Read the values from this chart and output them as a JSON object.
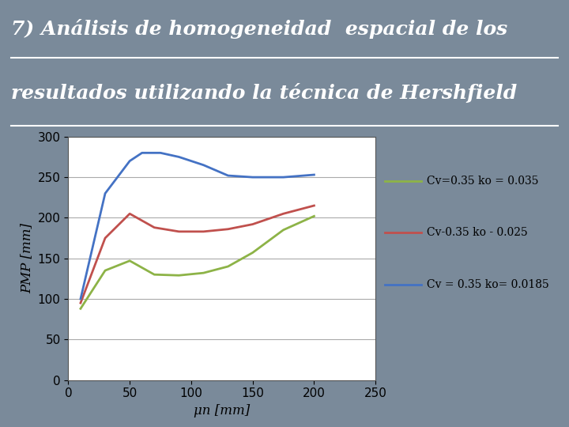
{
  "title_line1": "7) Análisis de homogeneidad  espacial de los",
  "title_line2": "resultados utilizando la técnica de Hershfield",
  "xlabel": "μn [mm]",
  "ylabel": "PMP [mm]",
  "xlim": [
    0,
    250
  ],
  "ylim": [
    0,
    300
  ],
  "xticks": [
    0,
    50,
    100,
    150,
    200,
    250
  ],
  "yticks": [
    0,
    50,
    100,
    150,
    200,
    250,
    300
  ],
  "background_color": "#7a8a9a",
  "chart_bg": "#ffffff",
  "series": [
    {
      "label": "Cv=0.35 ko = 0.035",
      "color": "#8db347",
      "x": [
        10,
        30,
        50,
        70,
        90,
        110,
        130,
        150,
        175,
        200
      ],
      "y": [
        88,
        135,
        147,
        130,
        129,
        132,
        140,
        157,
        185,
        202
      ]
    },
    {
      "label": "Cv-0.35 ko - 0.025",
      "color": "#c0504d",
      "x": [
        10,
        30,
        50,
        70,
        90,
        110,
        130,
        150,
        175,
        200
      ],
      "y": [
        95,
        175,
        205,
        188,
        183,
        183,
        186,
        192,
        205,
        215
      ]
    },
    {
      "label": "Cv = 0.35 ko= 0.0185",
      "color": "#4472c4",
      "x": [
        10,
        30,
        50,
        60,
        75,
        90,
        110,
        130,
        150,
        175,
        200
      ],
      "y": [
        100,
        230,
        270,
        280,
        280,
        275,
        265,
        252,
        250,
        250,
        253
      ]
    }
  ],
  "title_fontsize": 18,
  "title_color": "#ffffff",
  "axis_label_fontsize": 12,
  "tick_fontsize": 11,
  "legend_fontsize": 10,
  "line_width": 2.0
}
